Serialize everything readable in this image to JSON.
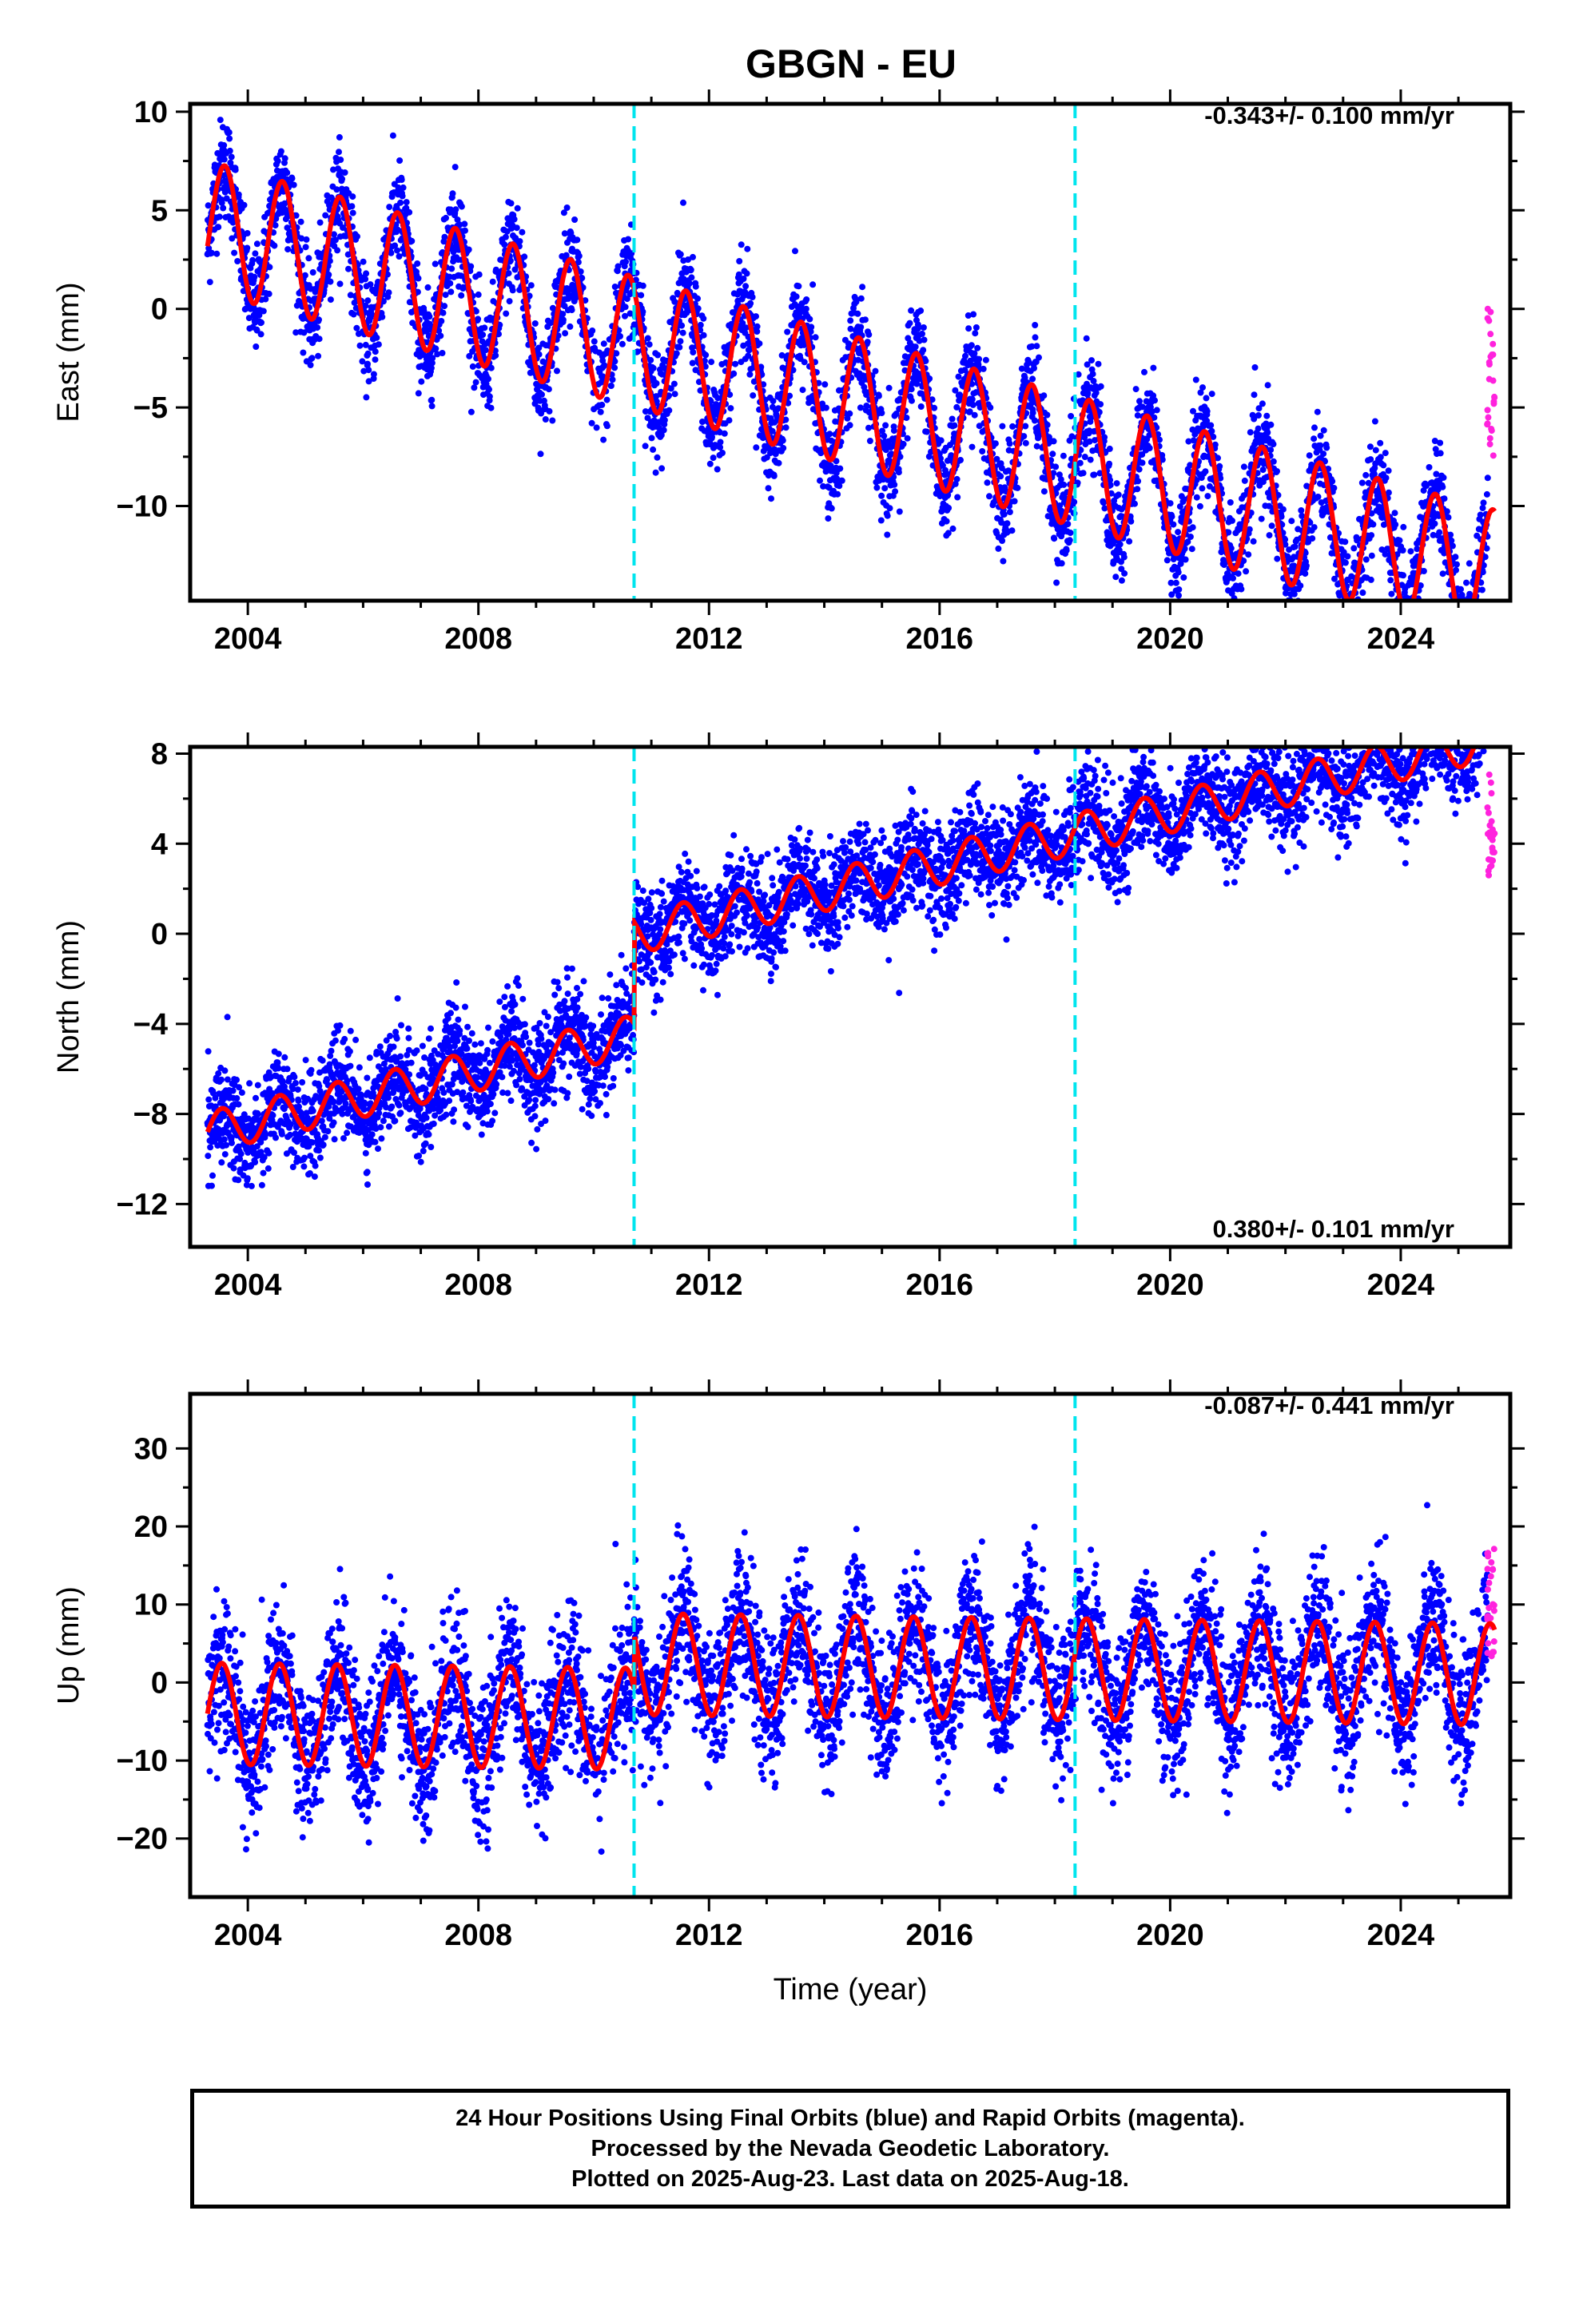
{
  "title": "GBGN - EU",
  "colors": {
    "final_orbits": "#0000ff",
    "rapid_orbits": "#ff22dd",
    "model_fit": "#ff0000",
    "event_lines": "#00e5ee"
  },
  "footer": {
    "line1": "24 Hour Positions Using Final Orbits (blue) and Rapid Orbits (magenta).",
    "line2": "Processed by the Nevada Geodetic Laboratory.",
    "line3": "Plotted on 2025-Aug-23. Last data on 2025-Aug-18."
  },
  "chart_data": [
    {
      "type": "scatter",
      "name": "east",
      "ylabel": "East (mm)",
      "xlabel": "",
      "xlim": [
        2003.0,
        2025.9
      ],
      "ylim": [
        -14.8,
        10.4
      ],
      "x_ticks": [
        2004,
        2008,
        2012,
        2016,
        2020,
        2024
      ],
      "x_tick_labels": [
        "2004",
        "2008",
        "2012",
        "2016",
        "2020",
        "2024"
      ],
      "y_ticks": [
        10,
        5,
        0,
        -5,
        -10
      ],
      "y_tick_labels": [
        "10",
        "5",
        "0",
        "-5",
        "-10"
      ],
      "annotation": "-0.343+/- 0.100 mm/yr",
      "annotation_position": "top-right",
      "event_lines_x": [
        2010.7,
        2018.35
      ],
      "data_span": [
        2003.3,
        2025.63
      ],
      "model": {
        "offset_at_start": 4.2,
        "rate_mm_per_yr": -0.343,
        "annual_amplitude": 3.3,
        "annual_phase": 0.35,
        "step": 0
      },
      "scatter_std": 1.3,
      "rapid_points": {
        "x_start": 2025.5,
        "x_end": 2025.63,
        "y_min": -7.5,
        "y_max": 0.2
      }
    },
    {
      "type": "scatter",
      "name": "north",
      "ylabel": "North (mm)",
      "xlabel": "",
      "xlim": [
        2003.0,
        2025.9
      ],
      "ylim": [
        -13.9,
        8.3
      ],
      "x_ticks": [
        2004,
        2008,
        2012,
        2016,
        2020,
        2024
      ],
      "x_tick_labels": [
        "2004",
        "2008",
        "2012",
        "2016",
        "2020",
        "2024"
      ],
      "y_ticks": [
        8,
        4,
        0,
        -4,
        -8,
        -12
      ],
      "y_tick_labels": [
        "8",
        "4",
        "0",
        "-4",
        "-8",
        "-12"
      ],
      "annotation": "0.380+/- 0.101 mm/yr",
      "annotation_position": "bottom-right",
      "event_lines_x": [
        2010.7,
        2018.35
      ],
      "data_span": [
        2003.3,
        2025.63
      ],
      "model": {
        "offset_at_start": -8.8,
        "rate_mm_per_yr": 0.38,
        "annual_amplitude": 0.9,
        "annual_phase": 0.3,
        "step": 4.5,
        "step_at": 2010.7
      },
      "scatter_std": 1.1,
      "rapid_points": {
        "x_start": 2025.5,
        "x_end": 2025.63,
        "y_min": 2.5,
        "y_max": 7.5
      }
    },
    {
      "type": "scatter",
      "name": "up",
      "ylabel": "Up (mm)",
      "xlabel": "Time (year)",
      "xlim": [
        2003.0,
        2025.9
      ],
      "ylim": [
        -27.5,
        37.0
      ],
      "x_ticks": [
        2004,
        2008,
        2012,
        2016,
        2020,
        2024
      ],
      "x_tick_labels": [
        "2004",
        "2008",
        "2012",
        "2016",
        "2020",
        "2024"
      ],
      "y_ticks": [
        30,
        20,
        10,
        0,
        -10,
        -20
      ],
      "y_tick_labels": [
        "30",
        "20",
        "10",
        "0",
        "-10",
        "-20"
      ],
      "annotation": "-0.087+/- 0.441 mm/yr",
      "annotation_position": "top-right",
      "event_lines_x": [
        2010.7,
        2018.35
      ],
      "data_span": [
        2003.3,
        2025.63
      ],
      "model": {
        "offset_at_start": -4.0,
        "rate_mm_per_yr": -0.087,
        "annual_amplitude": 6.5,
        "annual_phase": 0.3,
        "step": 7.0,
        "step_at": 2010.7
      },
      "scatter_std": 4.5,
      "rapid_points": {
        "x_start": 2025.5,
        "x_end": 2025.63,
        "y_min": 2.0,
        "y_max": 19.0
      }
    }
  ]
}
